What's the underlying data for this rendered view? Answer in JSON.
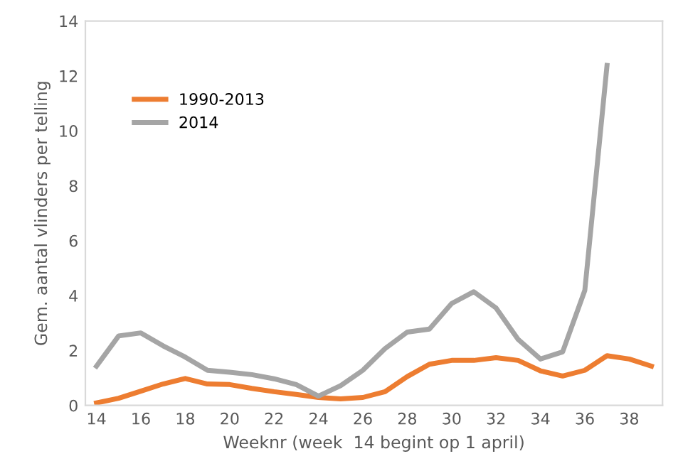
{
  "chart_data": {
    "type": "line",
    "xlabel": "Weeknr (week  14 begint op 1 april)",
    "ylabel": "Gem. aantal vlinders per telling",
    "x": [
      14,
      15,
      16,
      17,
      18,
      19,
      20,
      21,
      22,
      23,
      24,
      25,
      26,
      27,
      28,
      29,
      30,
      31,
      32,
      33,
      34,
      35,
      36,
      37,
      38,
      39
    ],
    "series": [
      {
        "name": "1990-2013",
        "color": "#ed7d31",
        "values": [
          0.09,
          0.26,
          0.52,
          0.78,
          0.98,
          0.78,
          0.76,
          0.62,
          0.5,
          0.4,
          0.29,
          0.24,
          0.29,
          0.5,
          1.05,
          1.5,
          1.64,
          1.64,
          1.74,
          1.64,
          1.26,
          1.07,
          1.28,
          1.81,
          1.69,
          1.43
        ]
      },
      {
        "name": "2014",
        "color": "#a5a5a5",
        "values": [
          1.43,
          2.53,
          2.64,
          2.17,
          1.76,
          1.28,
          1.21,
          1.12,
          0.97,
          0.76,
          0.34,
          0.72,
          1.28,
          2.07,
          2.67,
          2.78,
          3.71,
          4.14,
          3.55,
          2.4,
          1.69,
          1.95,
          4.19,
          12.38,
          null,
          null
        ]
      }
    ],
    "xlim": [
      13.5,
      39.5
    ],
    "xticks": [
      14,
      16,
      18,
      20,
      22,
      24,
      26,
      28,
      30,
      32,
      34,
      36,
      38
    ],
    "ylim": [
      0,
      14
    ],
    "yticks": [
      0,
      2,
      4,
      6,
      8,
      10,
      12,
      14
    ],
    "grid": false,
    "legend": "top left",
    "marker": "none",
    "line_style": "solid"
  }
}
